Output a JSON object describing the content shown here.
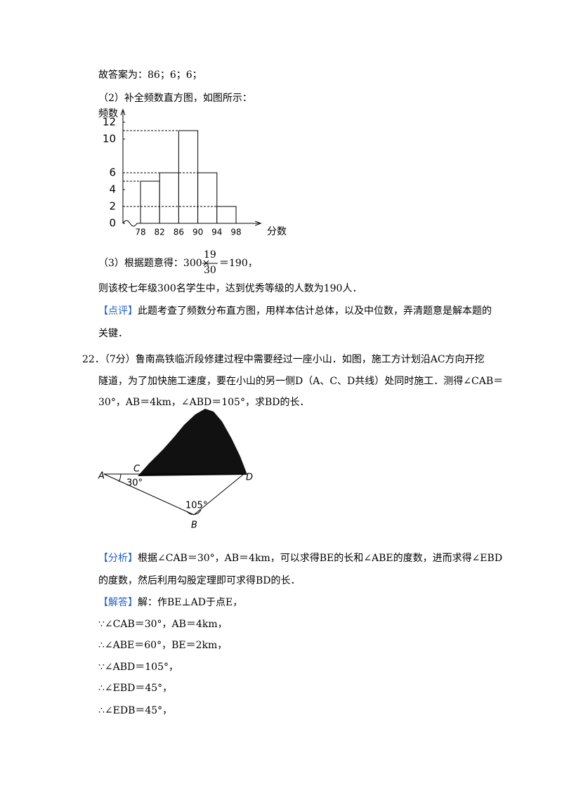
{
  "answer_line": "故答案为：86；6；6；",
  "part2": "（2）补全频数直方图，如图所示：",
  "chart_data": {
    "type": "histogram",
    "ylabel": "频数",
    "xlabel": "分数",
    "bins": [
      78,
      82,
      86,
      90,
      94,
      98
    ],
    "values": [
      5,
      6,
      11,
      6,
      2
    ],
    "color": "#ffffff",
    "xlim": [
      74,
      102
    ],
    "ylim": [
      0,
      13
    ],
    "yticks": [
      0,
      2,
      4,
      6,
      10,
      12
    ]
  },
  "part3": {
    "prefix": "（3）根据题意得：300×",
    "numerator": "19",
    "denominator": "30",
    "suffix": "＝190，"
  },
  "conclusion": "则该校七年级300名学生中，达到优秀等级的人数为190人．",
  "review": {
    "tag": "【点评】",
    "lines": [
      "此题考查了频数分布直方图，用样本估计总体，以及中位数，弄清题意是解本题的",
      "关键．"
    ]
  },
  "question": [
    "22．（7分）鲁南高铁临沂段修建过程中需要经过一座小山．如图，施工方计划沿AC方向开挖",
    "隧道，为了加快施工速度，要在小山的另一侧D（A、C、D共线）处同时施工．测得∠CAB＝",
    "30°，AB＝4km，∠ABD＝105°，求BD的长．"
  ],
  "figure": {
    "A": "A",
    "C": "C",
    "D": "D",
    "B": "B",
    "angle_A": "30°",
    "angle_B": "105°"
  },
  "analysis": {
    "tag": "【分析】",
    "lines": [
      "根据∠CAB＝30°，AB＝4km，可以求得BE的长和∠ABE的度数，进而求得∠EBD",
      "的度数，然后利用勾股定理即可求得BD的长．"
    ]
  },
  "solution": {
    "tag": "【解答】",
    "first": "解：作BE⊥AD于点E，",
    "lines": [
      "∵∠CAB＝30°，AB＝4km，",
      "∴∠ABE＝60°，BE＝2km，",
      "∵∠ABD＝105°，",
      "∴∠EBD＝45°，",
      "∴∠EDB＝45°，"
    ]
  }
}
